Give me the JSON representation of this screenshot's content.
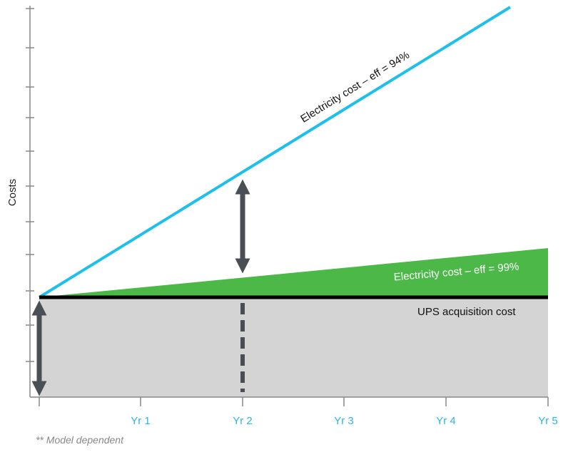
{
  "y_axis_label": "Costs",
  "x_labels": [
    "Yr 1",
    "Yr 2",
    "Yr 3",
    "Yr 4",
    "Yr 5"
  ],
  "labels": {
    "high": "Electricity cost – eff = 94%",
    "low": "Electricity cost – eff = 99%",
    "ups": "UPS acquisition cost"
  },
  "footnote": "** Model dependent"
}
